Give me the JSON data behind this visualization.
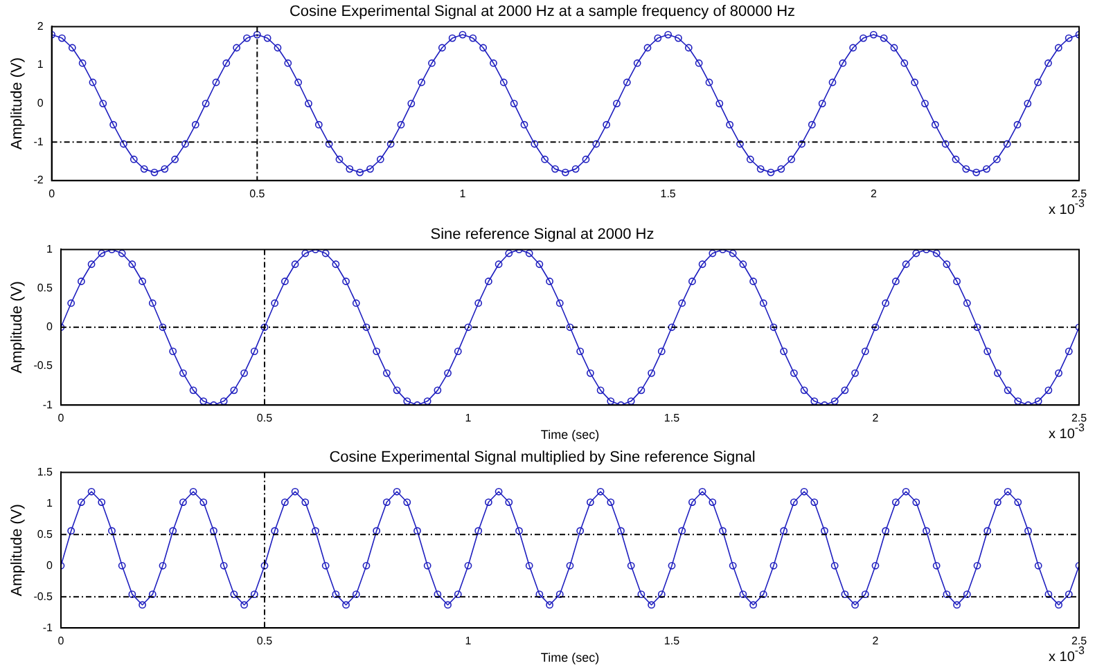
{
  "chart_data": [
    {
      "type": "line",
      "title": "Cosine Experimental Signal at 2000 Hz at a sample frequency of 80000 Hz",
      "xlabel": null,
      "ylabel": "Amplitude (V)",
      "x": [
        0,
        0.025,
        0.05,
        0.075,
        0.1,
        0.125,
        0.15,
        0.175,
        0.2,
        0.225,
        0.25,
        0.275,
        0.3,
        0.325,
        0.35,
        0.375,
        0.4,
        0.425,
        0.45,
        0.475,
        0.5,
        0.525,
        0.55,
        0.575,
        0.6,
        0.625,
        0.65,
        0.675,
        0.7,
        0.725,
        0.75,
        0.775,
        0.8,
        0.825,
        0.85,
        0.875,
        0.9,
        0.925,
        0.95,
        0.975,
        1,
        1.025,
        1.05,
        1.075,
        1.1,
        1.125,
        1.15,
        1.175,
        1.2,
        1.225,
        1.25,
        1.275,
        1.3,
        1.325,
        1.35,
        1.375,
        1.4,
        1.425,
        1.45,
        1.475,
        1.5,
        1.525,
        1.55,
        1.575,
        1.6,
        1.625,
        1.65,
        1.675,
        1.7,
        1.725,
        1.75,
        1.775,
        1.8,
        1.825,
        1.85,
        1.875,
        1.9,
        1.925,
        1.95,
        1.975,
        2,
        2.025,
        2.05,
        2.075,
        2.1,
        2.125,
        2.15,
        2.175,
        2.2,
        2.225,
        2.25,
        2.275,
        2.3,
        2.325,
        2.35,
        2.375,
        2.4,
        2.425,
        2.45,
        2.475,
        2.5
      ],
      "series": [
        {
          "color": "#1f1fbf",
          "values": [
            1.79,
            1.7,
            1.45,
            1.05,
            0.55,
            0,
            -0.55,
            -1.05,
            -1.45,
            -1.7,
            -1.79,
            -1.7,
            -1.45,
            -1.05,
            -0.55,
            0,
            0.55,
            1.05,
            1.45,
            1.7,
            1.79,
            1.7,
            1.45,
            1.05,
            0.55,
            0,
            -0.55,
            -1.05,
            -1.45,
            -1.7,
            -1.79,
            -1.7,
            -1.45,
            -1.05,
            -0.55,
            0,
            0.55,
            1.05,
            1.45,
            1.7,
            1.79,
            1.7,
            1.45,
            1.05,
            0.55,
            0,
            -0.55,
            -1.05,
            -1.45,
            -1.7,
            -1.79,
            -1.7,
            -1.45,
            -1.05,
            -0.55,
            0,
            0.55,
            1.05,
            1.45,
            1.7,
            1.79,
            1.7,
            1.45,
            1.05,
            0.55,
            0,
            -0.55,
            -1.05,
            -1.45,
            -1.7,
            -1.79,
            -1.7,
            -1.45,
            -1.05,
            -0.55,
            0,
            0.55,
            1.05,
            1.45,
            1.7,
            1.79,
            1.7,
            1.45,
            1.05,
            0.55,
            0,
            -0.55,
            -1.05,
            -1.45,
            -1.7,
            -1.79,
            -1.7,
            -1.45,
            -1.05,
            -0.55,
            0,
            0.55,
            1.05,
            1.45,
            1.7,
            1.79
          ]
        }
      ],
      "xlim": [
        0,
        2.5
      ],
      "xticks": [
        0,
        0.5,
        1,
        1.5,
        2,
        2.5
      ],
      "ylim": [
        -2,
        2
      ],
      "yticks": [
        -2,
        -1,
        0,
        1,
        2
      ],
      "ref_lines": [
        {
          "axis": "x",
          "value": 0.5,
          "line_style": "dotted",
          "color": "#000000"
        },
        {
          "axis": "y",
          "value": -1,
          "line_style": "dotted",
          "color": "#000000"
        }
      ],
      "annotations": [
        "x 10$^{-3}$"
      ],
      "marker": "circle",
      "line_style": "solid",
      "grid": false,
      "legend": false
    },
    {
      "type": "line",
      "title": "Sine reference Signal at 2000 Hz",
      "xlabel": "Time (sec)",
      "ylabel": "Amplitude (V)",
      "x": [
        0,
        0.025,
        0.05,
        0.075,
        0.1,
        0.125,
        0.15,
        0.175,
        0.2,
        0.225,
        0.25,
        0.275,
        0.3,
        0.325,
        0.35,
        0.375,
        0.4,
        0.425,
        0.45,
        0.475,
        0.5,
        0.525,
        0.55,
        0.575,
        0.6,
        0.625,
        0.65,
        0.675,
        0.7,
        0.725,
        0.75,
        0.775,
        0.8,
        0.825,
        0.85,
        0.875,
        0.9,
        0.925,
        0.95,
        0.975,
        1,
        1.025,
        1.05,
        1.075,
        1.1,
        1.125,
        1.15,
        1.175,
        1.2,
        1.225,
        1.25,
        1.275,
        1.3,
        1.325,
        1.35,
        1.375,
        1.4,
        1.425,
        1.45,
        1.475,
        1.5,
        1.525,
        1.55,
        1.575,
        1.6,
        1.625,
        1.65,
        1.675,
        1.7,
        1.725,
        1.75,
        1.775,
        1.8,
        1.825,
        1.85,
        1.875,
        1.9,
        1.925,
        1.95,
        1.975,
        2,
        2.025,
        2.05,
        2.075,
        2.1,
        2.125,
        2.15,
        2.175,
        2.2,
        2.225,
        2.25,
        2.275,
        2.3,
        2.325,
        2.35,
        2.375,
        2.4,
        2.425,
        2.45,
        2.475,
        2.5
      ],
      "series": [
        {
          "color": "#1f1fbf",
          "values": [
            0,
            0.31,
            0.59,
            0.81,
            0.95,
            1,
            0.95,
            0.81,
            0.59,
            0.31,
            0,
            -0.31,
            -0.59,
            -0.81,
            -0.95,
            -1,
            -0.95,
            -0.81,
            -0.59,
            -0.31,
            0,
            0.31,
            0.59,
            0.81,
            0.95,
            1,
            0.95,
            0.81,
            0.59,
            0.31,
            0,
            -0.31,
            -0.59,
            -0.81,
            -0.95,
            -1,
            -0.95,
            -0.81,
            -0.59,
            -0.31,
            0,
            0.31,
            0.59,
            0.81,
            0.95,
            1,
            0.95,
            0.81,
            0.59,
            0.31,
            0,
            -0.31,
            -0.59,
            -0.81,
            -0.95,
            -1,
            -0.95,
            -0.81,
            -0.59,
            -0.31,
            0,
            0.31,
            0.59,
            0.81,
            0.95,
            1,
            0.95,
            0.81,
            0.59,
            0.31,
            0,
            -0.31,
            -0.59,
            -0.81,
            -0.95,
            -1,
            -0.95,
            -0.81,
            -0.59,
            -0.31,
            0,
            0.31,
            0.59,
            0.81,
            0.95,
            1,
            0.95,
            0.81,
            0.59,
            0.31,
            0,
            -0.31,
            -0.59,
            -0.81,
            -0.95,
            -1,
            -0.95,
            -0.81,
            -0.59,
            -0.31,
            0
          ]
        }
      ],
      "xlim": [
        0,
        2.5
      ],
      "xticks": [
        0,
        0.5,
        1,
        1.5,
        2,
        2.5
      ],
      "ylim": [
        -1,
        1
      ],
      "yticks": [
        -1,
        -0.5,
        0,
        0.5,
        1
      ],
      "ref_lines": [
        {
          "axis": "x",
          "value": 0.5,
          "line_style": "dotted",
          "color": "#000000"
        },
        {
          "axis": "y",
          "value": 0,
          "line_style": "dotted",
          "color": "#000000"
        }
      ],
      "annotations": [
        "x 10$^{-3}$"
      ],
      "marker": "circle",
      "line_style": "solid",
      "grid": false,
      "legend": false
    },
    {
      "type": "line",
      "title": "Cosine Experimental Signal multiplied by Sine reference Signal",
      "xlabel": "Time (sec)",
      "ylabel": "Amplitude (V)",
      "x": [
        0,
        0.025,
        0.05,
        0.075,
        0.1,
        0.125,
        0.15,
        0.175,
        0.2,
        0.225,
        0.25,
        0.275,
        0.3,
        0.325,
        0.35,
        0.375,
        0.4,
        0.425,
        0.45,
        0.475,
        0.5,
        0.525,
        0.55,
        0.575,
        0.6,
        0.625,
        0.65,
        0.675,
        0.7,
        0.725,
        0.75,
        0.775,
        0.8,
        0.825,
        0.85,
        0.875,
        0.9,
        0.925,
        0.95,
        0.975,
        1,
        1.025,
        1.05,
        1.075,
        1.1,
        1.125,
        1.15,
        1.175,
        1.2,
        1.225,
        1.25,
        1.275,
        1.3,
        1.325,
        1.35,
        1.375,
        1.4,
        1.425,
        1.45,
        1.475,
        1.5,
        1.525,
        1.55,
        1.575,
        1.6,
        1.625,
        1.65,
        1.675,
        1.7,
        1.725,
        1.75,
        1.775,
        1.8,
        1.825,
        1.85,
        1.875,
        1.9,
        1.925,
        1.95,
        1.975,
        2,
        2.025,
        2.05,
        2.075,
        2.1,
        2.125,
        2.15,
        2.175,
        2.2,
        2.225,
        2.25,
        2.275,
        2.3,
        2.325,
        2.35,
        2.375,
        2.4,
        2.425,
        2.45,
        2.475,
        2.5
      ],
      "series": [
        {
          "color": "#1f1fbf",
          "values": [
            0,
            0.56,
            1.02,
            1.19,
            1.02,
            0.56,
            0,
            -0.46,
            -0.63,
            -0.46,
            0,
            0.56,
            1.02,
            1.19,
            1.02,
            0.56,
            0,
            -0.46,
            -0.63,
            -0.46,
            0,
            0.56,
            1.02,
            1.19,
            1.02,
            0.56,
            0,
            -0.46,
            -0.63,
            -0.46,
            0,
            0.56,
            1.02,
            1.19,
            1.02,
            0.56,
            0,
            -0.46,
            -0.63,
            -0.46,
            0,
            0.56,
            1.02,
            1.19,
            1.02,
            0.56,
            0,
            -0.46,
            -0.63,
            -0.46,
            0,
            0.56,
            1.02,
            1.19,
            1.02,
            0.56,
            0,
            -0.46,
            -0.63,
            -0.46,
            0,
            0.56,
            1.02,
            1.19,
            1.02,
            0.56,
            0,
            -0.46,
            -0.63,
            -0.46,
            0,
            0.56,
            1.02,
            1.19,
            1.02,
            0.56,
            0,
            -0.46,
            -0.63,
            -0.46,
            0,
            0.56,
            1.02,
            1.19,
            1.02,
            0.56,
            0,
            -0.46,
            -0.63,
            -0.46,
            0,
            0.56,
            1.02,
            1.19,
            1.02,
            0.56,
            0,
            -0.46,
            -0.63,
            -0.46,
            0
          ]
        }
      ],
      "xlim": [
        0,
        2.5
      ],
      "xticks": [
        0,
        0.5,
        1,
        1.5,
        2,
        2.5
      ],
      "ylim": [
        -1,
        1.5
      ],
      "yticks": [
        -1,
        -0.5,
        0,
        0.5,
        1,
        1.5
      ],
      "ref_lines": [
        {
          "axis": "x",
          "value": 0.5,
          "line_style": "dotted",
          "color": "#000000"
        },
        {
          "axis": "y",
          "value": 0.5,
          "line_style": "dotted",
          "color": "#000000"
        },
        {
          "axis": "y",
          "value": -0.5,
          "line_style": "dotted",
          "color": "#000000"
        }
      ],
      "annotations": [
        "x 10$^{-3}$"
      ],
      "marker": "circle",
      "line_style": "solid",
      "grid": false,
      "legend": false
    }
  ]
}
